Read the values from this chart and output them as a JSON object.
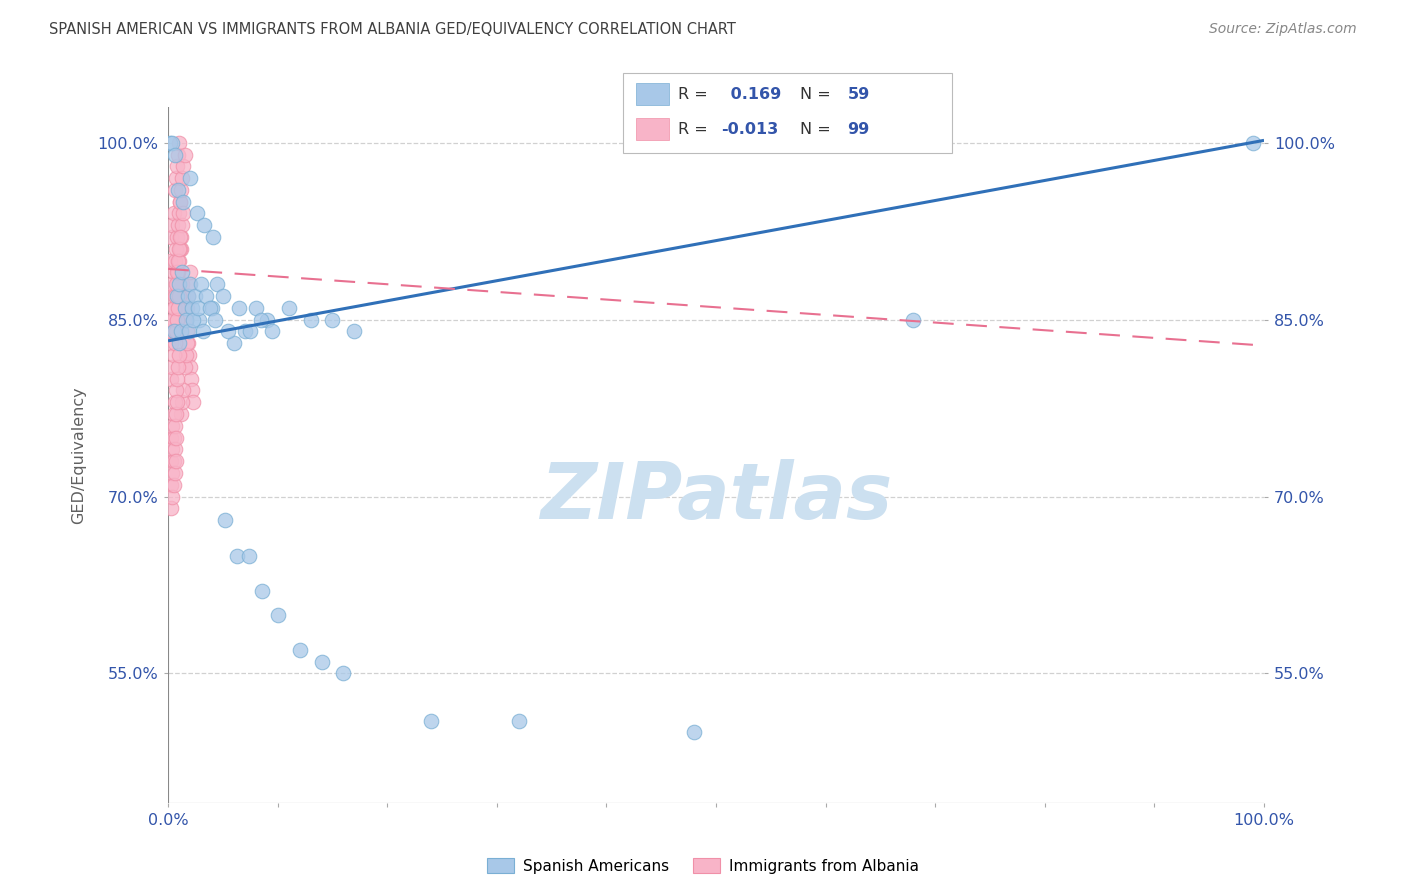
{
  "title": "SPANISH AMERICAN VS IMMIGRANTS FROM ALBANIA GED/EQUIVALENCY CORRELATION CHART",
  "source": "Source: ZipAtlas.com",
  "ylabel": "GED/Equivalency",
  "xlim": [
    0.0,
    1.0
  ],
  "ylim": [
    0.44,
    1.03
  ],
  "yticks": [
    0.55,
    0.7,
    0.85,
    1.0
  ],
  "ytick_labels": [
    "55.0%",
    "70.0%",
    "85.0%",
    "100.0%"
  ],
  "xticks": [
    0.0,
    0.1,
    0.2,
    0.3,
    0.4,
    0.5,
    0.6,
    0.7,
    0.8,
    0.9,
    1.0
  ],
  "R_blue": 0.169,
  "N_blue": 59,
  "R_pink": -0.013,
  "N_pink": 99,
  "blue_color": "#a8c8e8",
  "blue_edge_color": "#7aafd4",
  "pink_color": "#f8b4c8",
  "pink_edge_color": "#f090a8",
  "trend_blue_color": "#3070b8",
  "trend_pink_color": "#e87090",
  "watermark_color": "#cce0f0",
  "background_color": "#ffffff",
  "grid_color": "#cccccc",
  "title_color": "#404040",
  "axis_label_color": "#606060",
  "tick_color": "#3355aa",
  "source_color": "#888888",
  "blue_trend_y0": 0.832,
  "blue_trend_y1": 1.002,
  "pink_trend_y0": 0.893,
  "pink_trend_y1": 0.828,
  "blue_dots_x": [
    0.005,
    0.008,
    0.01,
    0.013,
    0.015,
    0.018,
    0.02,
    0.022,
    0.025,
    0.028,
    0.03,
    0.035,
    0.04,
    0.045,
    0.05,
    0.06,
    0.07,
    0.08,
    0.09,
    0.01,
    0.012,
    0.016,
    0.019,
    0.023,
    0.027,
    0.032,
    0.038,
    0.043,
    0.055,
    0.065,
    0.075,
    0.085,
    0.095,
    0.11,
    0.13,
    0.15,
    0.17,
    0.002,
    0.004,
    0.006,
    0.009,
    0.014,
    0.02,
    0.026,
    0.033,
    0.041,
    0.052,
    0.063,
    0.074,
    0.086,
    0.1,
    0.12,
    0.14,
    0.16,
    0.24,
    0.32,
    0.48,
    0.68,
    0.99
  ],
  "blue_dots_y": [
    0.84,
    0.87,
    0.88,
    0.89,
    0.86,
    0.87,
    0.88,
    0.86,
    0.87,
    0.85,
    0.88,
    0.87,
    0.86,
    0.88,
    0.87,
    0.83,
    0.84,
    0.86,
    0.85,
    0.83,
    0.84,
    0.85,
    0.84,
    0.85,
    0.86,
    0.84,
    0.86,
    0.85,
    0.84,
    0.86,
    0.84,
    0.85,
    0.84,
    0.86,
    0.85,
    0.85,
    0.84,
    1.0,
    1.0,
    0.99,
    0.96,
    0.95,
    0.97,
    0.94,
    0.93,
    0.92,
    0.68,
    0.65,
    0.65,
    0.62,
    0.6,
    0.57,
    0.56,
    0.55,
    0.51,
    0.51,
    0.5,
    0.85,
    1.0
  ],
  "pink_dots_x": [
    0.002,
    0.003,
    0.004,
    0.005,
    0.006,
    0.007,
    0.008,
    0.009,
    0.01,
    0.011,
    0.012,
    0.013,
    0.014,
    0.015,
    0.016,
    0.017,
    0.018,
    0.019,
    0.02,
    0.021,
    0.022,
    0.023,
    0.003,
    0.004,
    0.005,
    0.006,
    0.007,
    0.008,
    0.009,
    0.01,
    0.011,
    0.012,
    0.013,
    0.014,
    0.015,
    0.016,
    0.017,
    0.018,
    0.019,
    0.02,
    0.003,
    0.004,
    0.005,
    0.006,
    0.007,
    0.008,
    0.009,
    0.01,
    0.011,
    0.012,
    0.013,
    0.014,
    0.015,
    0.016,
    0.017,
    0.003,
    0.004,
    0.005,
    0.006,
    0.007,
    0.008,
    0.009,
    0.01,
    0.011,
    0.012,
    0.013,
    0.014,
    0.003,
    0.004,
    0.005,
    0.006,
    0.007,
    0.008,
    0.009,
    0.01,
    0.003,
    0.004,
    0.005,
    0.006,
    0.007,
    0.008,
    0.009,
    0.01,
    0.003,
    0.004,
    0.005,
    0.006,
    0.007,
    0.008,
    0.003,
    0.004,
    0.005,
    0.006,
    0.007,
    0.003,
    0.004,
    0.005,
    0.006,
    0.007
  ],
  "pink_dots_y": [
    0.9,
    0.92,
    0.93,
    0.94,
    0.96,
    0.97,
    0.98,
    0.99,
    1.0,
    0.95,
    0.91,
    0.88,
    0.87,
    0.86,
    0.85,
    0.84,
    0.83,
    0.82,
    0.81,
    0.8,
    0.79,
    0.78,
    0.87,
    0.88,
    0.89,
    0.9,
    0.91,
    0.92,
    0.93,
    0.94,
    0.95,
    0.96,
    0.97,
    0.98,
    0.99,
    0.85,
    0.86,
    0.87,
    0.88,
    0.89,
    0.83,
    0.84,
    0.85,
    0.86,
    0.87,
    0.88,
    0.89,
    0.9,
    0.91,
    0.92,
    0.93,
    0.94,
    0.81,
    0.82,
    0.83,
    0.84,
    0.85,
    0.86,
    0.87,
    0.88,
    0.89,
    0.9,
    0.91,
    0.92,
    0.77,
    0.78,
    0.79,
    0.8,
    0.81,
    0.82,
    0.83,
    0.84,
    0.85,
    0.86,
    0.87,
    0.75,
    0.76,
    0.77,
    0.78,
    0.79,
    0.8,
    0.81,
    0.82,
    0.73,
    0.74,
    0.75,
    0.76,
    0.77,
    0.78,
    0.71,
    0.72,
    0.73,
    0.74,
    0.75,
    0.69,
    0.7,
    0.71,
    0.72,
    0.73
  ]
}
